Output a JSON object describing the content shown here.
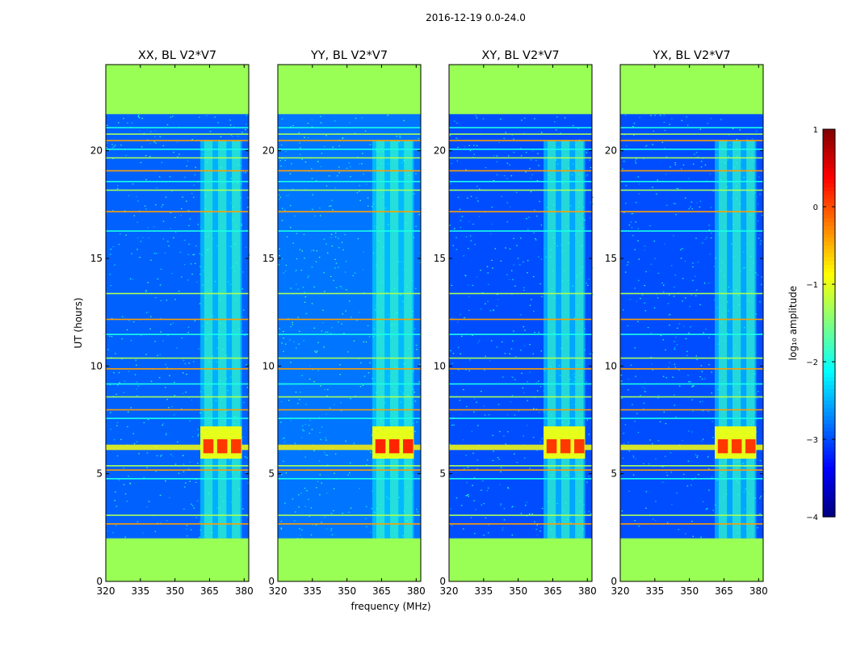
{
  "figure": {
    "suptitle": "2016-12-19 0.0-24.0",
    "colors": {
      "flagged": "#99ff55",
      "frame": "#000000"
    }
  },
  "chart_data": {
    "type": "heatmap",
    "colormap": "jet",
    "xlabel": "frequency (MHz)",
    "ylabel": "UT (hours)",
    "xlim": [
      320,
      382
    ],
    "ylim": [
      0,
      24
    ],
    "xticks": [
      320,
      335,
      350,
      365,
      380
    ],
    "yticks": [
      0,
      5,
      10,
      15,
      20
    ],
    "flagged_ut_ranges": [
      [
        0.0,
        2.0
      ],
      [
        21.7,
        24.0
      ]
    ],
    "signal_band_mhz": [
      361,
      379
    ],
    "signal_channels_mhz": [
      364.5,
      370.5,
      376.5
    ],
    "strong_burst_ut": [
      5.7,
      7.2
    ],
    "rfi_rows_ut": [
      2.7,
      3.1,
      4.8,
      5.2,
      5.4,
      7.6,
      8.0,
      8.6,
      9.2,
      9.9,
      10.4,
      11.5,
      12.2,
      13.4,
      16.3,
      17.2,
      18.2,
      18.6,
      19.1,
      19.7,
      20.1,
      20.5,
      20.8,
      21.1
    ],
    "panels": [
      {
        "title": "XX, BL V2*V7",
        "background_level": -2.9,
        "burst_level": 0.1
      },
      {
        "title": "YY, BL V2*V7",
        "background_level": -2.8,
        "burst_level": 0.2
      },
      {
        "title": "XY, BL V2*V7",
        "background_level": -3.0,
        "burst_level": 0.1
      },
      {
        "title": "YX, BL V2*V7",
        "background_level": -3.0,
        "burst_level": 0.1
      }
    ],
    "colorbar": {
      "label": "log₁₀ amplitude",
      "range": [
        -4,
        1
      ],
      "ticks": [
        1,
        0,
        -1,
        -2,
        -3,
        -4
      ],
      "tick_labels": [
        "1",
        "0",
        "−1",
        "−2",
        "−3",
        "−4"
      ]
    }
  }
}
